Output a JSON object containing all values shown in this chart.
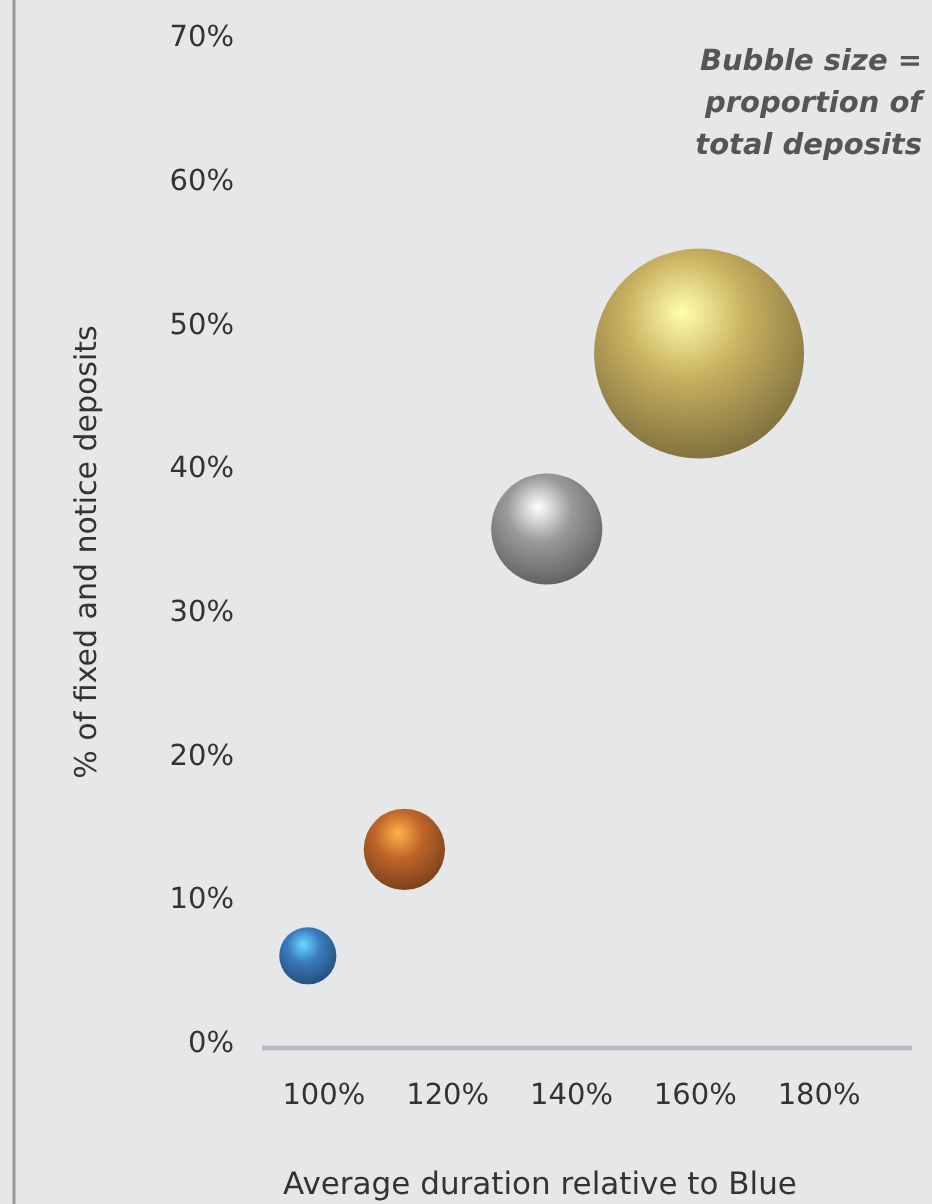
{
  "chart_data": {
    "type": "bubble",
    "xlabel": "Average duration relative to Blue",
    "ylabel": "% of fixed and notice deposits",
    "annotations": [
      "Bubble size =\nproportion of\ntotal deposits"
    ],
    "x": [
      97.4,
      113,
      136,
      160.6
    ],
    "values": [
      6.0,
      13.4,
      35.7,
      47.9
    ],
    "sizes": [
      0.074,
      0.15,
      0.28,
      1
    ],
    "colors": [
      "#3a7bbf",
      "#c0652a",
      "#9a9a9a",
      "#c8b060"
    ],
    "xlim": [
      90,
      195
    ],
    "xticks": [
      {
        "value": 100,
        "label": "100%"
      },
      {
        "value": 120,
        "label": "120%"
      },
      {
        "value": 140,
        "label": "140%"
      },
      {
        "value": 160,
        "label": "160%"
      },
      {
        "value": 180,
        "label": "180%"
      }
    ],
    "ylim": [
      0,
      70
    ],
    "yticks": [
      {
        "value": 0,
        "label": "0%"
      },
      {
        "value": 10,
        "label": "10%"
      },
      {
        "value": 20,
        "label": "20%"
      },
      {
        "value": 30,
        "label": "30%"
      },
      {
        "value": 40,
        "label": "40%"
      },
      {
        "value": 50,
        "label": "50%"
      },
      {
        "value": 60,
        "label": "60%"
      },
      {
        "value": 70,
        "label": "70%"
      }
    ],
    "grid": false
  }
}
